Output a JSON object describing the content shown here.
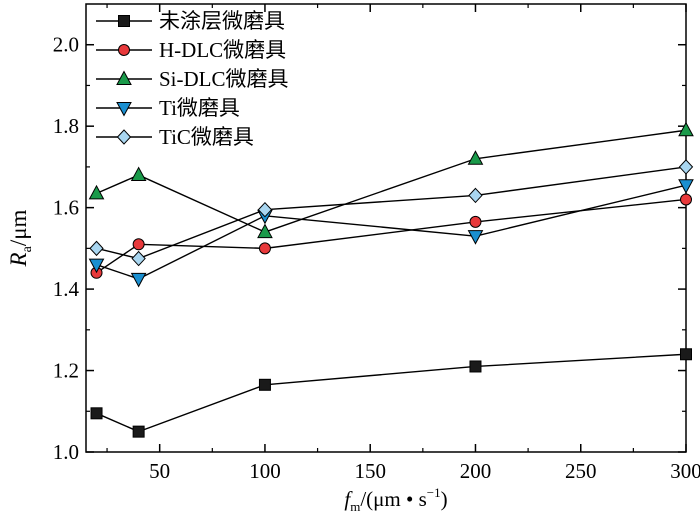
{
  "chart_data": {
    "type": "line",
    "title": "",
    "x": [
      20,
      40,
      100,
      200,
      300
    ],
    "xlim": [
      15,
      300
    ],
    "ylim": [
      1.0,
      2.1
    ],
    "xticks": [
      50,
      100,
      150,
      200,
      250,
      300
    ],
    "yticks": [
      1.0,
      1.2,
      1.4,
      1.6,
      1.8,
      2.0
    ],
    "xtick_labels": [
      "50",
      "100",
      "150",
      "200",
      "250",
      "300"
    ],
    "ytick_labels": [
      "1.0",
      "1.2",
      "1.4",
      "1.6",
      "1.8",
      "2.0"
    ],
    "xlabel": {
      "var": "f",
      "sub": "m",
      "unit": "/(μm • s",
      "sup": "−1",
      "close": ")"
    },
    "ylabel": {
      "var": "R",
      "sub": "a",
      "unit": "/μm"
    },
    "legend_position": "top-left",
    "grid": false,
    "series": [
      {
        "name": "未涂层微磨具",
        "marker": "square",
        "color": "#1a1a1a",
        "values": [
          1.095,
          1.05,
          1.165,
          1.21,
          1.24
        ]
      },
      {
        "name": "H-DLC微磨具",
        "marker": "circle",
        "color": "#e8393b",
        "values": [
          1.44,
          1.51,
          1.5,
          1.565,
          1.62
        ]
      },
      {
        "name": "Si-DLC微磨具",
        "marker": "triangle-up",
        "color": "#1a9a4a",
        "values": [
          1.635,
          1.68,
          1.54,
          1.72,
          1.79
        ]
      },
      {
        "name": "Ti微磨具",
        "marker": "triangle-down",
        "color": "#1a8fd0",
        "values": [
          1.46,
          1.425,
          1.58,
          1.53,
          1.655
        ]
      },
      {
        "name": "TiC微磨具",
        "marker": "diamond",
        "color": "#a9d6f0",
        "values": [
          1.5,
          1.475,
          1.595,
          1.63,
          1.7
        ]
      }
    ]
  }
}
